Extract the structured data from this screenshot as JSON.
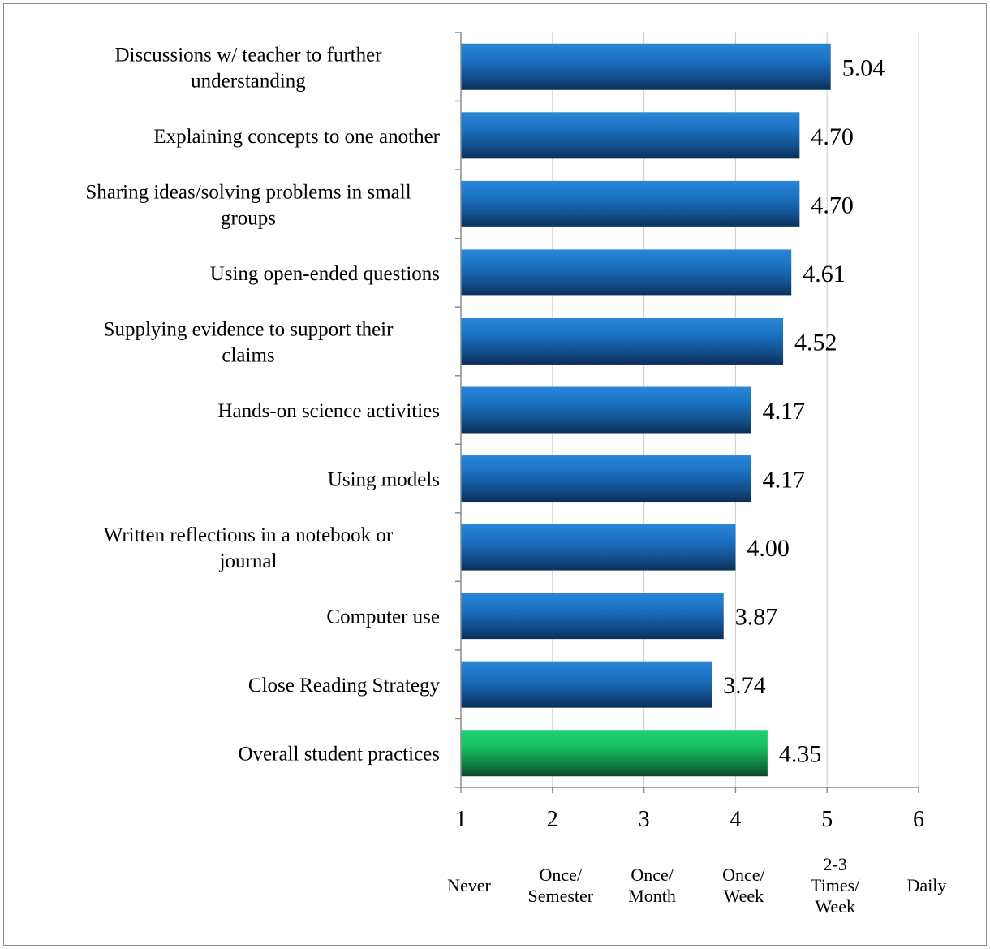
{
  "chart_data": {
    "type": "bar",
    "orientation": "horizontal",
    "categories": [
      "Discussions w/ teacher to further understanding",
      "Explaining concepts to one another",
      "Sharing ideas/solving problems in small groups",
      "Using open-ended questions",
      "Supplying evidence to support their claims",
      "Hands-on science activities",
      "Using models",
      "Written reflections in a notebook or journal",
      "Computer use",
      "Close Reading Strategy",
      "Overall student practices"
    ],
    "values": [
      5.04,
      4.7,
      4.7,
      4.61,
      4.52,
      4.17,
      4.17,
      4.0,
      3.87,
      3.74,
      4.35
    ],
    "value_labels": [
      "5.04",
      "4.70",
      "4.70",
      "4.61",
      "4.52",
      "4.17",
      "4.17",
      "4.00",
      "3.87",
      "3.74",
      "4.35"
    ],
    "highlight": [
      false,
      false,
      false,
      false,
      false,
      false,
      false,
      false,
      false,
      false,
      true
    ],
    "xlim": [
      1,
      6
    ],
    "xticks": [
      "1",
      "2",
      "3",
      "4",
      "5",
      "6"
    ],
    "frequency_labels": [
      "Never",
      "Once/ Semester",
      "Once/ Month",
      "Once/ Week",
      "2-3 Times/ Week",
      "Daily"
    ],
    "title": "",
    "xlabel": "",
    "ylabel": "",
    "grid": "vertical gridlines",
    "legend": "none",
    "colors": {
      "bar": "#1a72c2",
      "bar_dark": "#0b2f58",
      "highlight_bar": "#17c165",
      "highlight_dark": "#0b4a26",
      "gridline": "#d3d3d3",
      "axis": "#8c8c8c"
    }
  }
}
